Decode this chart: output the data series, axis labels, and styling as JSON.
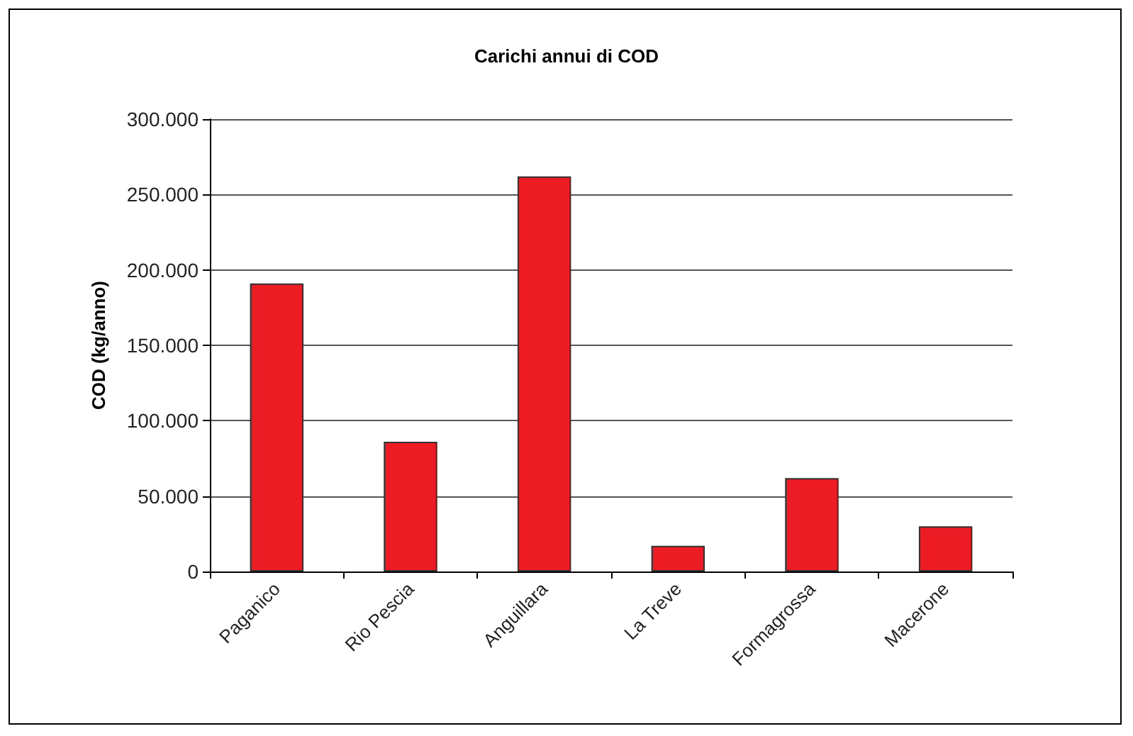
{
  "chart_data": {
    "type": "bar",
    "title": "Carichi annui di COD",
    "ylabel": "COD (kg/anno)",
    "categories": [
      "Paganico",
      "Rio Pescia",
      "Anguillara",
      "La Treve",
      "Formagrossa",
      "Macerone"
    ],
    "values": [
      191000,
      86000,
      262000,
      17000,
      62000,
      30000
    ],
    "color": "#ed1c24",
    "ylim": [
      0,
      300000
    ],
    "yticks": [
      {
        "value": 0,
        "label": "0"
      },
      {
        "value": 50000,
        "label": "50.000"
      },
      {
        "value": 100000,
        "label": "100.000"
      },
      {
        "value": 150000,
        "label": "150.000"
      },
      {
        "value": 200000,
        "label": "200.000"
      },
      {
        "value": 250000,
        "label": "250.000"
      },
      {
        "value": 300000,
        "label": "300.000"
      }
    ],
    "grid": "y"
  }
}
